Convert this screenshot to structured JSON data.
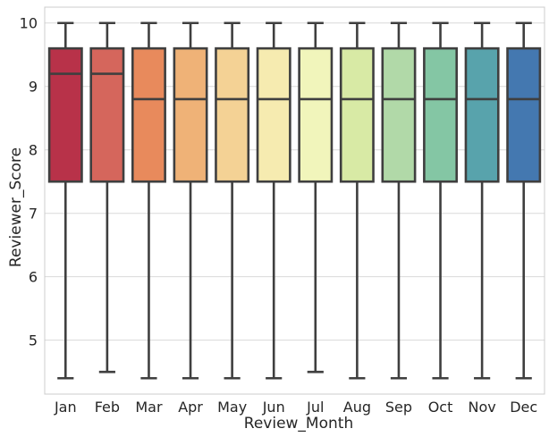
{
  "chart_data": {
    "type": "box",
    "xlabel": "Review_Month",
    "ylabel": "Reviewer_Score",
    "ylim": [
      4.15,
      10.25
    ],
    "yticks": [
      5,
      6,
      7,
      8,
      9,
      10
    ],
    "grid": true,
    "categories": [
      "Jan",
      "Feb",
      "Mar",
      "Apr",
      "May",
      "Jun",
      "Jul",
      "Aug",
      "Sep",
      "Oct",
      "Nov",
      "Dec"
    ],
    "boxes": [
      {
        "category": "Jan",
        "min": 4.4,
        "q1": 7.5,
        "median": 9.2,
        "q3": 9.6,
        "max": 10.0,
        "color": "#b83249"
      },
      {
        "category": "Feb",
        "min": 4.5,
        "q1": 7.5,
        "median": 9.2,
        "q3": 9.6,
        "max": 10.0,
        "color": "#d5665c"
      },
      {
        "category": "Mar",
        "min": 4.4,
        "q1": 7.5,
        "median": 8.8,
        "q3": 9.6,
        "max": 10.0,
        "color": "#e88a5c"
      },
      {
        "category": "Apr",
        "min": 4.4,
        "q1": 7.5,
        "median": 8.8,
        "q3": 9.6,
        "max": 10.0,
        "color": "#efb277"
      },
      {
        "category": "May",
        "min": 4.4,
        "q1": 7.5,
        "median": 8.8,
        "q3": 9.6,
        "max": 10.0,
        "color": "#f4d295"
      },
      {
        "category": "Jun",
        "min": 4.4,
        "q1": 7.5,
        "median": 8.8,
        "q3": 9.6,
        "max": 10.0,
        "color": "#f6ebb0"
      },
      {
        "category": "Jul",
        "min": 4.5,
        "q1": 7.5,
        "median": 8.8,
        "q3": 9.6,
        "max": 10.0,
        "color": "#f1f5bb"
      },
      {
        "category": "Aug",
        "min": 4.4,
        "q1": 7.5,
        "median": 8.8,
        "q3": 9.6,
        "max": 10.0,
        "color": "#d8eaa5"
      },
      {
        "category": "Sep",
        "min": 4.4,
        "q1": 7.5,
        "median": 8.8,
        "q3": 9.6,
        "max": 10.0,
        "color": "#b1d9a8"
      },
      {
        "category": "Oct",
        "min": 4.4,
        "q1": 7.5,
        "median": 8.8,
        "q3": 9.6,
        "max": 10.0,
        "color": "#84c6a4"
      },
      {
        "category": "Nov",
        "min": 4.4,
        "q1": 7.5,
        "median": 8.8,
        "q3": 9.6,
        "max": 10.0,
        "color": "#58a3ac"
      },
      {
        "category": "Dec",
        "min": 4.4,
        "q1": 7.5,
        "median": 8.8,
        "q3": 9.6,
        "max": 10.0,
        "color": "#4478b0"
      }
    ]
  }
}
